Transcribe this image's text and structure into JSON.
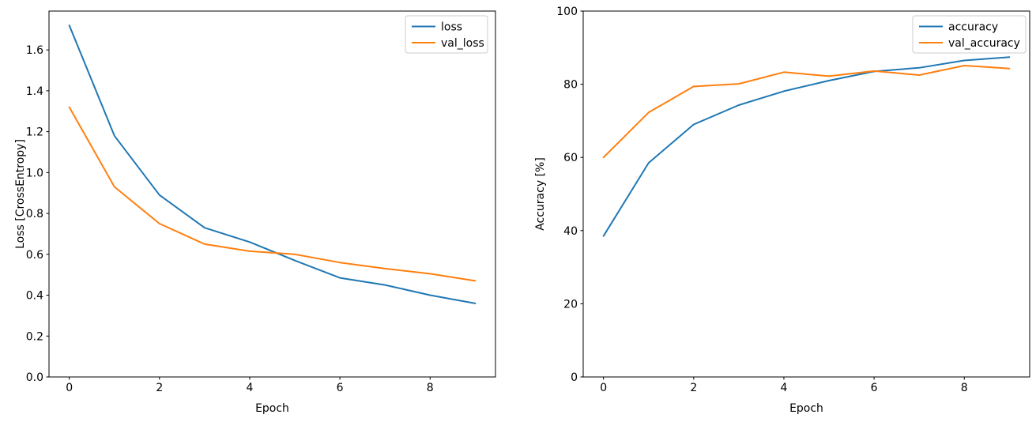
{
  "figure": {
    "background": "#ffffff"
  },
  "styles": {
    "series_color_1": "#1f77b4",
    "series_color_2": "#ff7f0e",
    "spine_color": "#000000",
    "tick_color": "#000000",
    "text_color": "#000000",
    "legend_edge_color": "#cccccc",
    "legend_face_color": "#ffffff"
  },
  "chart_data": [
    {
      "type": "line",
      "title": "",
      "xlabel": "Epoch",
      "ylabel": "Loss [CrossEntropy]",
      "x": [
        0,
        1,
        2,
        3,
        4,
        5,
        6,
        7,
        8,
        9
      ],
      "series": [
        {
          "name": "loss",
          "color": "#1f77b4",
          "values": [
            1.72,
            1.18,
            0.89,
            0.73,
            0.66,
            0.57,
            0.485,
            0.45,
            0.4,
            0.36
          ]
        },
        {
          "name": "val_loss",
          "color": "#ff7f0e",
          "values": [
            1.32,
            0.93,
            0.75,
            0.65,
            0.615,
            0.6,
            0.56,
            0.53,
            0.505,
            0.47
          ]
        }
      ],
      "xlim": [
        -0.45,
        9.45
      ],
      "ylim": [
        0,
        1.79
      ],
      "xticks": [
        0,
        2,
        4,
        6,
        8
      ],
      "xtick_labels": [
        "0",
        "2",
        "4",
        "6",
        "8"
      ],
      "yticks": [
        0.0,
        0.2,
        0.4,
        0.6,
        0.8,
        1.0,
        1.2,
        1.4,
        1.6
      ],
      "ytick_labels": [
        "0.0",
        "0.2",
        "0.4",
        "0.6",
        "0.8",
        "1.0",
        "1.2",
        "1.4",
        "1.6"
      ],
      "grid": false,
      "legend": {
        "location": "upper right",
        "entries": [
          "loss",
          "val_loss"
        ]
      }
    },
    {
      "type": "line",
      "title": "",
      "xlabel": "Epoch",
      "ylabel": "Accuracy [%]",
      "x": [
        0,
        1,
        2,
        3,
        4,
        5,
        6,
        7,
        8,
        9
      ],
      "series": [
        {
          "name": "accuracy",
          "color": "#1f77b4",
          "values": [
            38.5,
            58.5,
            69.0,
            74.3,
            78.1,
            81.0,
            83.5,
            84.5,
            86.5,
            87.4
          ]
        },
        {
          "name": "val_accuracy",
          "color": "#ff7f0e",
          "values": [
            60.0,
            72.3,
            79.4,
            80.1,
            83.3,
            82.2,
            83.6,
            82.5,
            85.1,
            84.3
          ]
        }
      ],
      "xlim": [
        -0.45,
        9.45
      ],
      "ylim": [
        0,
        100
      ],
      "xticks": [
        0,
        2,
        4,
        6,
        8
      ],
      "xtick_labels": [
        "0",
        "2",
        "4",
        "6",
        "8"
      ],
      "yticks": [
        0,
        20,
        40,
        60,
        80,
        100
      ],
      "ytick_labels": [
        "0",
        "20",
        "40",
        "60",
        "80",
        "100"
      ],
      "grid": false,
      "legend": {
        "location": "upper right",
        "entries": [
          "accuracy",
          "val_accuracy"
        ]
      }
    }
  ]
}
